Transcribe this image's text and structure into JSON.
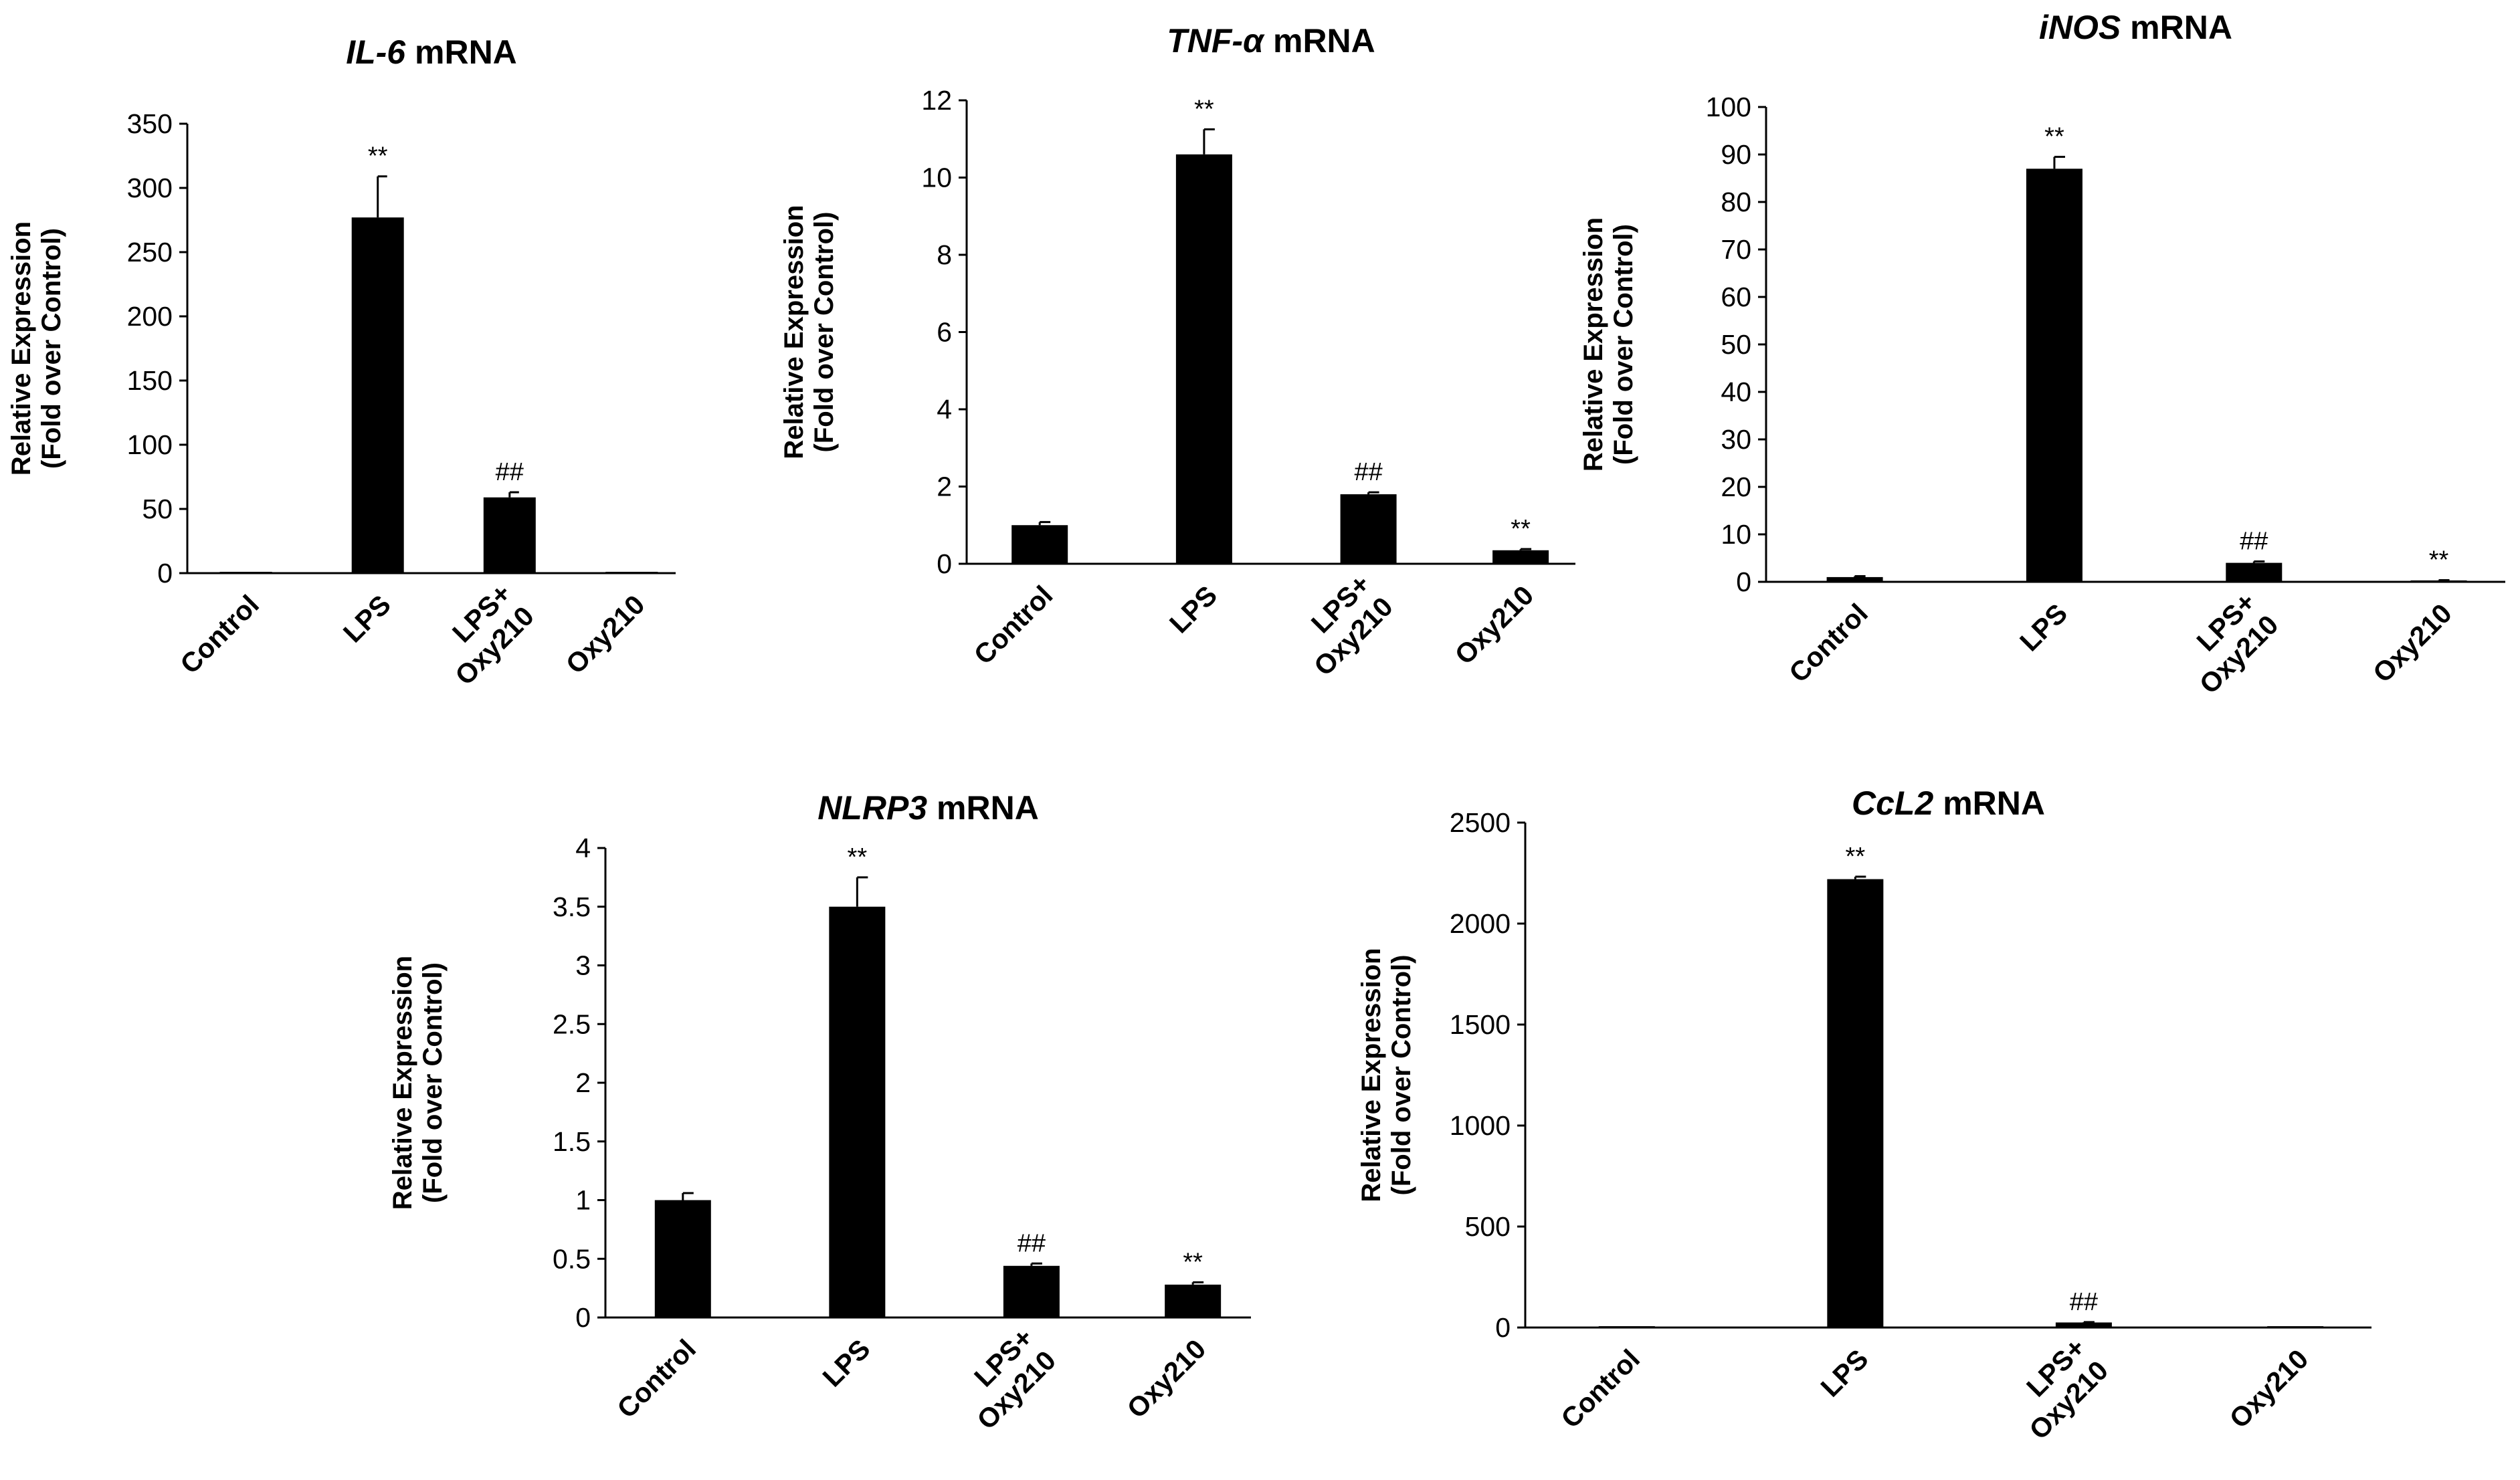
{
  "chart_data": [
    {
      "type": "bar",
      "title": "mRNA",
      "title_gene": "IL-6",
      "ylabel_lines": [
        "Relative Expression",
        "(Fold over Control)"
      ],
      "ylim": [
        0,
        350
      ],
      "yticks": [
        0,
        50,
        100,
        150,
        200,
        250,
        300,
        350
      ],
      "categories": [
        [
          "Control"
        ],
        [
          "LPS"
        ],
        [
          "LPS+",
          "Oxy210"
        ],
        [
          "Oxy210"
        ]
      ],
      "values": [
        1,
        277,
        59,
        1
      ],
      "errors": [
        0,
        32,
        4,
        0
      ],
      "annotations": [
        "",
        "**",
        "##",
        ""
      ]
    },
    {
      "type": "bar",
      "title": "mRNA",
      "title_gene": "TNF-α",
      "ylabel_lines": [
        "Relative Expression",
        "(Fold over Control)"
      ],
      "ylim": [
        0,
        12
      ],
      "yticks": [
        0,
        2,
        4,
        6,
        8,
        10,
        12
      ],
      "categories": [
        [
          "Control"
        ],
        [
          "LPS"
        ],
        [
          "LPS+",
          "Oxy210"
        ],
        [
          "Oxy210"
        ]
      ],
      "values": [
        1.0,
        10.6,
        1.8,
        0.35
      ],
      "errors": [
        0.08,
        0.65,
        0.05,
        0.03
      ],
      "annotations": [
        "",
        "**",
        "##",
        "**"
      ]
    },
    {
      "type": "bar",
      "title": "mRNA",
      "title_gene": "iNOS",
      "ylabel_lines": [
        "Relative Expression",
        "(Fold over Control)"
      ],
      "ylim": [
        0,
        100
      ],
      "yticks": [
        0,
        10,
        20,
        30,
        40,
        50,
        60,
        70,
        80,
        90,
        100
      ],
      "categories": [
        [
          "Control"
        ],
        [
          "LPS"
        ],
        [
          "LPS+",
          "Oxy210"
        ],
        [
          "Oxy210"
        ]
      ],
      "values": [
        1,
        87,
        4,
        0.3
      ],
      "errors": [
        0.2,
        2.5,
        0.3,
        0.05
      ],
      "annotations": [
        "",
        "**",
        "##",
        "**"
      ]
    },
    {
      "type": "bar",
      "title": "mRNA",
      "title_gene": "NLRP3",
      "ylabel_lines": [
        "Relative Expression",
        "(Fold over Control)"
      ],
      "ylim": [
        0,
        4
      ],
      "yticks": [
        0,
        0.5,
        1,
        1.5,
        2,
        2.5,
        3,
        3.5,
        4
      ],
      "categories": [
        [
          "Control"
        ],
        [
          "LPS"
        ],
        [
          "LPS+",
          "Oxy210"
        ],
        [
          "Oxy210"
        ]
      ],
      "values": [
        1.0,
        3.5,
        0.44,
        0.28
      ],
      "errors": [
        0.06,
        0.25,
        0.02,
        0.02
      ],
      "annotations": [
        "",
        "**",
        "##",
        "**"
      ]
    },
    {
      "type": "bar",
      "title": "mRNA",
      "title_gene": "CcL2",
      "ylabel_lines": [
        "Relative Expression",
        "(Fold over Control)"
      ],
      "ylim": [
        0,
        2500
      ],
      "yticks": [
        0,
        500,
        1000,
        1500,
        2000,
        2500
      ],
      "categories": [
        [
          "Control"
        ],
        [
          "LPS"
        ],
        [
          "LPS+",
          "Oxy210"
        ],
        [
          "Oxy210"
        ]
      ],
      "values": [
        1,
        2220,
        25,
        1
      ],
      "errors": [
        0,
        12,
        2,
        0
      ],
      "annotations": [
        "",
        "**",
        "##",
        ""
      ]
    }
  ]
}
